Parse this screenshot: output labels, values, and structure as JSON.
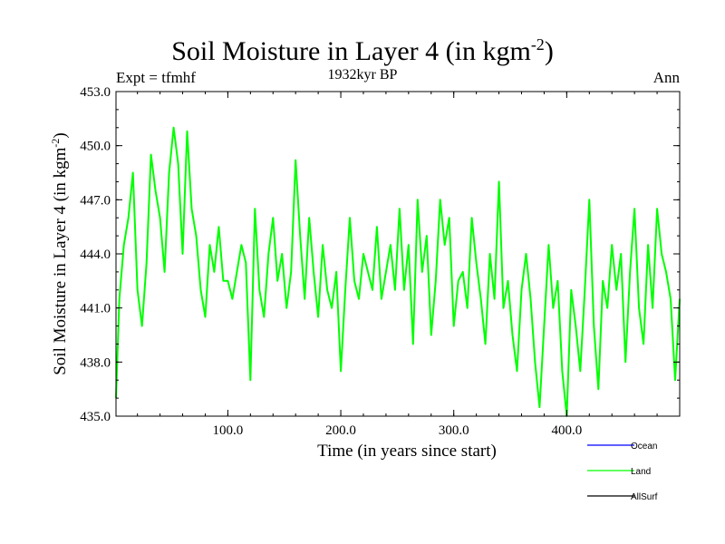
{
  "header": {
    "title_main": "Soil Moisture in Layer 4 (in kgm",
    "title_sup": "-2",
    "title_close": ")",
    "subtitle": "1932kyr BP",
    "expt": "Expt = tfmhf",
    "season": "Ann"
  },
  "chart_data": {
    "type": "line",
    "title": "Soil Moisture in Layer 4 (in kgm-2)",
    "xlabel": "Time (in years since start)",
    "ylabel_main": "Soil Moisture in Layer 4 (in kgm",
    "ylabel_sup": "-2",
    "ylabel_close": ")",
    "xlim": [
      1,
      500
    ],
    "ylim": [
      435.0,
      453.0
    ],
    "x_ticks": [
      100,
      200,
      300,
      400
    ],
    "x_tick_labels": [
      "100.0",
      "200.0",
      "300.0",
      "400.0"
    ],
    "y_ticks": [
      435,
      438,
      441,
      444,
      447,
      450,
      453
    ],
    "y_tick_labels": [
      "435.0",
      "438.0",
      "441.0",
      "444.0",
      "447.0",
      "450.0",
      "453.0"
    ],
    "legend": [
      {
        "name": "Ocean",
        "color": "#0000ff"
      },
      {
        "name": "Land",
        "color": "#00ff00"
      },
      {
        "name": "AllSurf",
        "color": "#000000"
      }
    ],
    "series": [
      {
        "name": "Land",
        "color": "#00ff00",
        "x": [
          1,
          4,
          8,
          12,
          16,
          20,
          24,
          28,
          32,
          36,
          40,
          44,
          48,
          52,
          56,
          60,
          64,
          68,
          72,
          76,
          80,
          84,
          88,
          92,
          96,
          100,
          104,
          108,
          112,
          116,
          120,
          124,
          128,
          132,
          136,
          140,
          144,
          148,
          152,
          156,
          160,
          164,
          168,
          172,
          176,
          180,
          184,
          188,
          192,
          196,
          200,
          204,
          208,
          212,
          216,
          220,
          224,
          228,
          232,
          236,
          240,
          244,
          248,
          252,
          256,
          260,
          264,
          268,
          272,
          276,
          280,
          284,
          288,
          292,
          296,
          300,
          304,
          308,
          312,
          316,
          320,
          324,
          328,
          332,
          336,
          340,
          344,
          348,
          352,
          356,
          360,
          364,
          368,
          372,
          376,
          380,
          384,
          388,
          392,
          396,
          400,
          404,
          408,
          412,
          416,
          420,
          424,
          428,
          432,
          436,
          440,
          444,
          448,
          452,
          456,
          460,
          464,
          468,
          472,
          476,
          480,
          484,
          488,
          492,
          496,
          500
        ],
        "values": [
          436.0,
          441.5,
          444.5,
          446.0,
          448.5,
          442.0,
          440.0,
          443.5,
          449.5,
          447.5,
          446.0,
          443.0,
          448.5,
          451.0,
          449.0,
          444.0,
          450.8,
          446.5,
          445.0,
          442.0,
          440.5,
          444.5,
          443.0,
          445.5,
          442.5,
          442.5,
          441.5,
          443.0,
          444.5,
          443.5,
          437.0,
          446.5,
          442.0,
          440.5,
          444.0,
          446.0,
          442.5,
          444.0,
          441.0,
          443.0,
          449.2,
          445.0,
          441.5,
          446.0,
          443.0,
          440.5,
          444.5,
          442.0,
          441.0,
          443.0,
          437.5,
          442.0,
          446.0,
          442.5,
          441.5,
          444.0,
          443.0,
          442.0,
          445.5,
          441.5,
          443.0,
          444.5,
          442.0,
          446.5,
          442.0,
          444.5,
          439.0,
          447.0,
          443.0,
          445.0,
          439.5,
          442.5,
          447.0,
          444.5,
          446.0,
          440.0,
          442.5,
          443.0,
          441.0,
          446.0,
          443.5,
          441.5,
          439.0,
          444.0,
          441.5,
          448.0,
          441.0,
          442.5,
          439.5,
          437.5,
          442.0,
          444.0,
          441.5,
          438.0,
          435.5,
          440.0,
          444.5,
          441.0,
          442.5,
          437.5,
          435.0,
          442.0,
          440.0,
          437.5,
          442.0,
          447.0,
          440.0,
          436.5,
          442.5,
          441.0,
          444.5,
          442.0,
          444.0,
          438.0,
          443.0,
          446.5,
          441.0,
          439.0,
          444.5,
          441.0,
          446.5,
          444.0,
          443.0,
          441.5,
          437.0,
          441.5
        ]
      }
    ]
  }
}
